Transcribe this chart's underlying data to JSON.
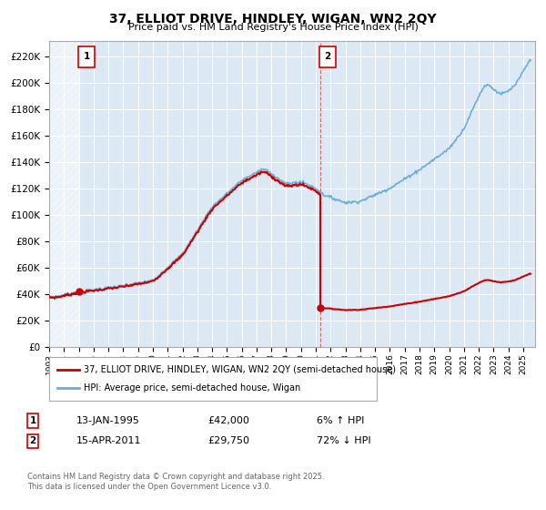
{
  "title": "37, ELLIOT DRIVE, HINDLEY, WIGAN, WN2 2QY",
  "subtitle": "Price paid vs. HM Land Registry's House Price Index (HPI)",
  "plot_bg_color": "#dce9f5",
  "ylabel_ticks": [
    "£0",
    "£20K",
    "£40K",
    "£60K",
    "£80K",
    "£100K",
    "£120K",
    "£140K",
    "£160K",
    "£180K",
    "£200K",
    "£220K"
  ],
  "ytick_values": [
    0,
    20000,
    40000,
    60000,
    80000,
    100000,
    120000,
    140000,
    160000,
    180000,
    200000,
    220000
  ],
  "ylim": [
    0,
    232000
  ],
  "sale1_date_x": 1995.04,
  "sale1_price": 42000,
  "sale2_date_x": 2011.29,
  "sale2_price": 29750,
  "legend_line1": "37, ELLIOT DRIVE, HINDLEY, WIGAN, WN2 2QY (semi-detached house)",
  "legend_line2": "HPI: Average price, semi-detached house, Wigan",
  "note1_label": "1",
  "note1_date": "13-JAN-1995",
  "note1_price": "£42,000",
  "note1_hpi": "6% ↑ HPI",
  "note2_label": "2",
  "note2_date": "15-APR-2011",
  "note2_price": "£29,750",
  "note2_hpi": "72% ↓ HPI",
  "footer": "Contains HM Land Registry data © Crown copyright and database right 2025.\nThis data is licensed under the Open Government Licence v3.0.",
  "red_color": "#cc0000",
  "blue_color": "#6baed6",
  "xmin": 1993.0,
  "xmax": 2025.8
}
